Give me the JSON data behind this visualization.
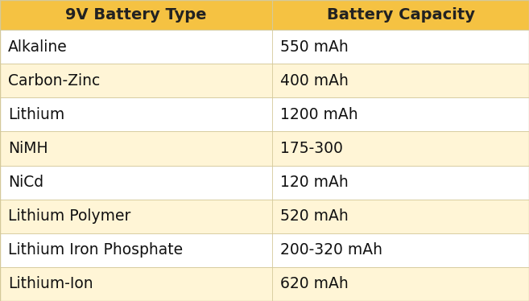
{
  "col1_header": "9V Battery Type",
  "col2_header": "Battery Capacity",
  "rows": [
    [
      "Alkaline",
      "550 mAh"
    ],
    [
      "Carbon-Zinc",
      "400 mAh"
    ],
    [
      "Lithium",
      "1200 mAh"
    ],
    [
      "NiMH",
      "175-300"
    ],
    [
      "NiCd",
      "120 mAh"
    ],
    [
      "Lithium Polymer",
      "520 mAh"
    ],
    [
      "Lithium Iron Phosphate",
      "200-320 mAh"
    ],
    [
      "Lithium-Ion",
      "620 mAh"
    ]
  ],
  "header_bg": "#F5C242",
  "row_bg_odd": "#FFFFFF",
  "row_bg_even": "#FFF5D6",
  "header_text_color": "#222222",
  "row_text_color": "#111111",
  "border_color": "#D4C99A",
  "header_fontsize": 14,
  "row_fontsize": 13.5,
  "col_split": 0.515,
  "fig_width": 6.57,
  "fig_height": 3.74,
  "dpi": 100
}
